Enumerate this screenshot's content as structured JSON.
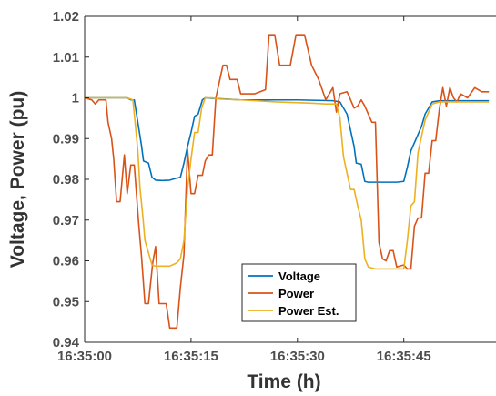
{
  "chart_data": {
    "type": "line",
    "title": "",
    "xlabel": "Time (h)",
    "ylabel": "Voltage, Power (pu)",
    "xlim": [
      0,
      58
    ],
    "ylim": [
      0.94,
      1.02
    ],
    "x_ticks": [
      {
        "value": 0,
        "label": "16:35:00"
      },
      {
        "value": 15,
        "label": "16:35:15"
      },
      {
        "value": 30,
        "label": "16:35:30"
      },
      {
        "value": 45,
        "label": "16:35:45"
      }
    ],
    "y_ticks": [
      {
        "value": 0.94,
        "label": "0.94"
      },
      {
        "value": 0.95,
        "label": "0.95"
      },
      {
        "value": 0.96,
        "label": "0.96"
      },
      {
        "value": 0.97,
        "label": "0.97"
      },
      {
        "value": 0.98,
        "label": "0.98"
      },
      {
        "value": 0.99,
        "label": "0.99"
      },
      {
        "value": 1.0,
        "label": "1"
      },
      {
        "value": 1.01,
        "label": "1.01"
      },
      {
        "value": 1.02,
        "label": "1.02"
      }
    ],
    "grid": false,
    "legend_position": "bottom-center",
    "series": [
      {
        "name": "Voltage",
        "color": "#0072BD",
        "points": [
          [
            0,
            1.0
          ],
          [
            6,
            1.0
          ],
          [
            6.5,
            0.9995
          ],
          [
            7,
            0.9995
          ],
          [
            7.5,
            0.994
          ],
          [
            8,
            0.9885
          ],
          [
            8.3,
            0.9845
          ],
          [
            9,
            0.984
          ],
          [
            9.5,
            0.9805
          ],
          [
            10,
            0.9798
          ],
          [
            11,
            0.9797
          ],
          [
            12,
            0.9798
          ],
          [
            13,
            0.9803
          ],
          [
            13.5,
            0.9805
          ],
          [
            14,
            0.984
          ],
          [
            14.5,
            0.988
          ],
          [
            15,
            0.9915
          ],
          [
            15.5,
            0.9955
          ],
          [
            16,
            0.996
          ],
          [
            16.6,
            0.9995
          ],
          [
            17,
            1.0
          ],
          [
            19,
            0.9998
          ],
          [
            22,
            0.9995
          ],
          [
            30,
            0.9995
          ],
          [
            35,
            0.9993
          ],
          [
            36,
            0.999
          ],
          [
            37,
            0.996
          ],
          [
            37.5,
            0.992
          ],
          [
            38,
            0.988
          ],
          [
            38.3,
            0.984
          ],
          [
            39,
            0.9837
          ],
          [
            39.5,
            0.9795
          ],
          [
            40,
            0.9793
          ],
          [
            44,
            0.9793
          ],
          [
            45,
            0.9795
          ],
          [
            45.5,
            0.983
          ],
          [
            46,
            0.987
          ],
          [
            47,
            0.991
          ],
          [
            47.5,
            0.993
          ],
          [
            48,
            0.996
          ],
          [
            49,
            0.999
          ],
          [
            50,
            0.9993
          ],
          [
            57,
            0.9993
          ]
        ]
      },
      {
        "name": "Power",
        "color": "#D95319",
        "points": [
          [
            0,
            1.0
          ],
          [
            1,
            0.9995
          ],
          [
            1.5,
            0.9985
          ],
          [
            2,
            0.9995
          ],
          [
            3,
            0.9995
          ],
          [
            3.3,
            0.994
          ],
          [
            3.8,
            0.99
          ],
          [
            4.1,
            0.985
          ],
          [
            4.5,
            0.9745
          ],
          [
            5,
            0.9745
          ],
          [
            5.6,
            0.986
          ],
          [
            6,
            0.9765
          ],
          [
            6.5,
            0.9835
          ],
          [
            7,
            0.9835
          ],
          [
            7.6,
            0.9695
          ],
          [
            8,
            0.9615
          ],
          [
            8.5,
            0.9495
          ],
          [
            9,
            0.9495
          ],
          [
            9.6,
            0.9595
          ],
          [
            10,
            0.9635
          ],
          [
            10.5,
            0.9495
          ],
          [
            11.5,
            0.9495
          ],
          [
            12,
            0.9435
          ],
          [
            13,
            0.9435
          ],
          [
            13.5,
            0.9535
          ],
          [
            14,
            0.9615
          ],
          [
            14.5,
            0.9875
          ],
          [
            15,
            0.9765
          ],
          [
            15.5,
            0.9765
          ],
          [
            16,
            0.981
          ],
          [
            16.6,
            0.981
          ],
          [
            17,
            0.9845
          ],
          [
            17.5,
            0.986
          ],
          [
            18,
            0.986
          ],
          [
            18.5,
            1.0
          ],
          [
            19,
            1.004
          ],
          [
            19.5,
            1.008
          ],
          [
            20,
            1.008
          ],
          [
            20.5,
            1.0045
          ],
          [
            21.5,
            1.0045
          ],
          [
            22,
            1.001
          ],
          [
            24,
            1.001
          ],
          [
            25.5,
            1.002
          ],
          [
            26,
            1.0155
          ],
          [
            26.8,
            1.0155
          ],
          [
            27.5,
            1.008
          ],
          [
            29,
            1.008
          ],
          [
            29.8,
            1.0155
          ],
          [
            31,
            1.0155
          ],
          [
            32,
            1.008
          ],
          [
            33,
            1.0045
          ],
          [
            34,
            0.9995
          ],
          [
            35,
            1.0025
          ],
          [
            35.5,
            0.9965
          ],
          [
            36,
            1.001
          ],
          [
            37,
            1.0015
          ],
          [
            38,
            0.9975
          ],
          [
            38.5,
            0.998
          ],
          [
            39,
            0.9995
          ],
          [
            39.5,
            0.998
          ],
          [
            40,
            0.996
          ],
          [
            40.5,
            0.994
          ],
          [
            41,
            0.994
          ],
          [
            41.5,
            0.9645
          ],
          [
            42,
            0.9605
          ],
          [
            42.5,
            0.96
          ],
          [
            43,
            0.9625
          ],
          [
            43.5,
            0.9625
          ],
          [
            44,
            0.9585
          ],
          [
            45,
            0.959
          ],
          [
            45.5,
            0.958
          ],
          [
            46,
            0.958
          ],
          [
            46.5,
            0.9685
          ],
          [
            47,
            0.9705
          ],
          [
            47.5,
            0.9705
          ],
          [
            48,
            0.9815
          ],
          [
            48.5,
            0.9815
          ],
          [
            49,
            0.9895
          ],
          [
            49.5,
            0.9895
          ],
          [
            50,
            0.997
          ],
          [
            50.5,
            1.0025
          ],
          [
            51,
            0.998
          ],
          [
            51.5,
            1.0025
          ],
          [
            52,
            1.0
          ],
          [
            52.5,
            0.999
          ],
          [
            53,
            1.001
          ],
          [
            54,
            1.0
          ],
          [
            55,
            1.0025
          ],
          [
            56,
            1.0015
          ],
          [
            57,
            1.0015
          ]
        ]
      },
      {
        "name": "Power Est.",
        "color": "#EDB120",
        "points": [
          [
            0,
            1.0
          ],
          [
            6,
            1.0
          ],
          [
            6.8,
            0.9995
          ],
          [
            7,
            0.996
          ],
          [
            7.5,
            0.987
          ],
          [
            7.8,
            0.978
          ],
          [
            8.2,
            0.971
          ],
          [
            8.5,
            0.965
          ],
          [
            9,
            0.962
          ],
          [
            9.5,
            0.959
          ],
          [
            10,
            0.9587
          ],
          [
            12,
            0.9587
          ],
          [
            13,
            0.9595
          ],
          [
            13.5,
            0.9605
          ],
          [
            14,
            0.965
          ],
          [
            14.5,
            0.9775
          ],
          [
            15,
            0.985
          ],
          [
            15.5,
            0.9915
          ],
          [
            16,
            0.9915
          ],
          [
            16.5,
            0.9975
          ],
          [
            17,
            1.0
          ],
          [
            18,
            1.0
          ],
          [
            19,
            0.9997
          ],
          [
            22,
            0.9995
          ],
          [
            27,
            0.999
          ],
          [
            32,
            0.9987
          ],
          [
            34,
            0.9985
          ],
          [
            35.5,
            0.9985
          ],
          [
            36,
            0.995
          ],
          [
            36.5,
            0.9855
          ],
          [
            37,
            0.9815
          ],
          [
            37.5,
            0.9775
          ],
          [
            38,
            0.9775
          ],
          [
            38.5,
            0.9735
          ],
          [
            39,
            0.97
          ],
          [
            39.5,
            0.9605
          ],
          [
            40,
            0.9585
          ],
          [
            41,
            0.958
          ],
          [
            45,
            0.958
          ],
          [
            45.5,
            0.965
          ],
          [
            46,
            0.9735
          ],
          [
            46.5,
            0.9745
          ],
          [
            47,
            0.9865
          ],
          [
            47.5,
            0.9905
          ],
          [
            48,
            0.9945
          ],
          [
            48.5,
            0.9965
          ],
          [
            49,
            0.9985
          ],
          [
            50,
            0.999
          ],
          [
            57,
            0.999
          ]
        ]
      }
    ]
  }
}
